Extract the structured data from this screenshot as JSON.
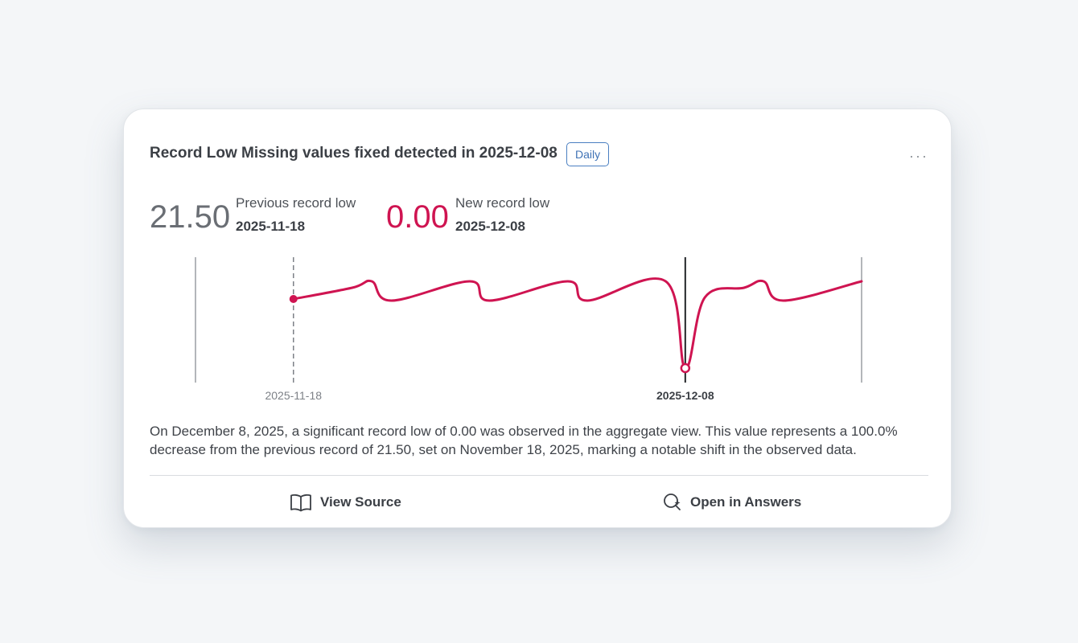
{
  "card": {
    "title": "Record Low Missing values fixed detected in 2025-12-08",
    "badge": "Daily",
    "more_label": "···"
  },
  "stats": {
    "previous": {
      "value": "21.50",
      "label": "Previous record low",
      "date": "2025-11-18"
    },
    "new": {
      "value": "0.00",
      "label": "New record low",
      "date": "2025-12-08"
    }
  },
  "chart_data": {
    "type": "line",
    "title": "",
    "xlabel": "",
    "ylabel": "",
    "x_tick_labels": [
      {
        "date": "2025-11-18",
        "emphasis": false
      },
      {
        "date": "2025-12-08",
        "emphasis": true
      }
    ],
    "series": [
      {
        "points": [
          [
            "2025-11-13",
            null
          ],
          [
            "2025-11-18",
            21.5
          ],
          [
            "2025-11-21",
            25
          ],
          [
            "2025-11-22",
            27
          ],
          [
            "2025-11-23",
            21
          ],
          [
            "2025-11-27",
            27
          ],
          [
            "2025-11-28",
            21
          ],
          [
            "2025-12-02",
            27
          ],
          [
            "2025-12-03",
            21
          ],
          [
            "2025-12-07",
            27
          ],
          [
            "2025-12-08",
            0
          ],
          [
            "2025-12-09",
            22
          ],
          [
            "2025-12-11",
            25
          ],
          [
            "2025-12-12",
            27
          ],
          [
            "2025-12-13",
            21
          ],
          [
            "2025-12-17",
            27
          ]
        ]
      }
    ],
    "markers": [
      {
        "date": "2025-11-18",
        "value": 21.5,
        "kind": "previous-record"
      },
      {
        "date": "2025-12-08",
        "value": 0,
        "kind": "new-record"
      }
    ],
    "ylim": [
      0,
      30
    ],
    "grid": false,
    "line_color": "#cf1451"
  },
  "summary": "On December 8, 2025, a significant record low of 0.00 was observed in the aggregate view. This value represents a 100.0% decrease from the previous record of 21.50, set on November 18, 2025, marking a notable shift in the observed data.",
  "actions": {
    "view_source": "View Source",
    "open_answers": "Open in Answers"
  },
  "icons": {
    "view_source": "book-icon",
    "open_answers": "search-sparkle-icon"
  }
}
